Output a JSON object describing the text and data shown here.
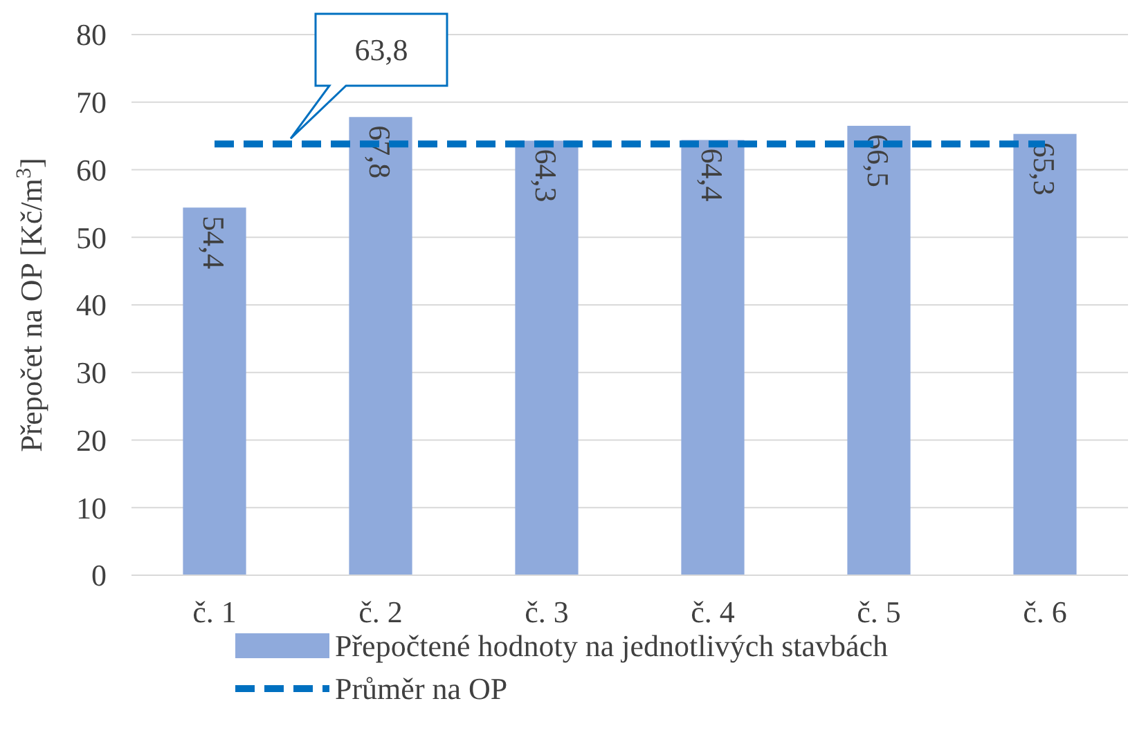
{
  "chart_data": {
    "type": "bar",
    "ylabel": "Přepočet na OP [Kč/m$^{3}$]",
    "categories": [
      "č. 1",
      "č. 2",
      "č. 3",
      "č. 4",
      "č. 5",
      "č. 6"
    ],
    "series": [
      {
        "name": "Přepočtené hodnoty na jednotlivých stavbách",
        "color": "#8faadc",
        "values": [
          54.4,
          67.8,
          64.3,
          64.4,
          66.5,
          65.3
        ],
        "value_labels": [
          "54,4",
          "67,8",
          "64,3",
          "64,4",
          "66,5",
          "65,3"
        ]
      },
      {
        "name": "Průměr na OP",
        "type": "line",
        "color": "#0070c0",
        "line_style": "dashed",
        "values": [
          63.8,
          63.8,
          63.8,
          63.8,
          63.8,
          63.8
        ]
      }
    ],
    "annotations": [
      {
        "text": "63,8",
        "y": 63.8
      }
    ],
    "ylim": [
      0,
      80
    ],
    "yticks": [
      0,
      10,
      20,
      30,
      40,
      50,
      60,
      70,
      80
    ],
    "grid": "y",
    "legend": "bottom"
  }
}
